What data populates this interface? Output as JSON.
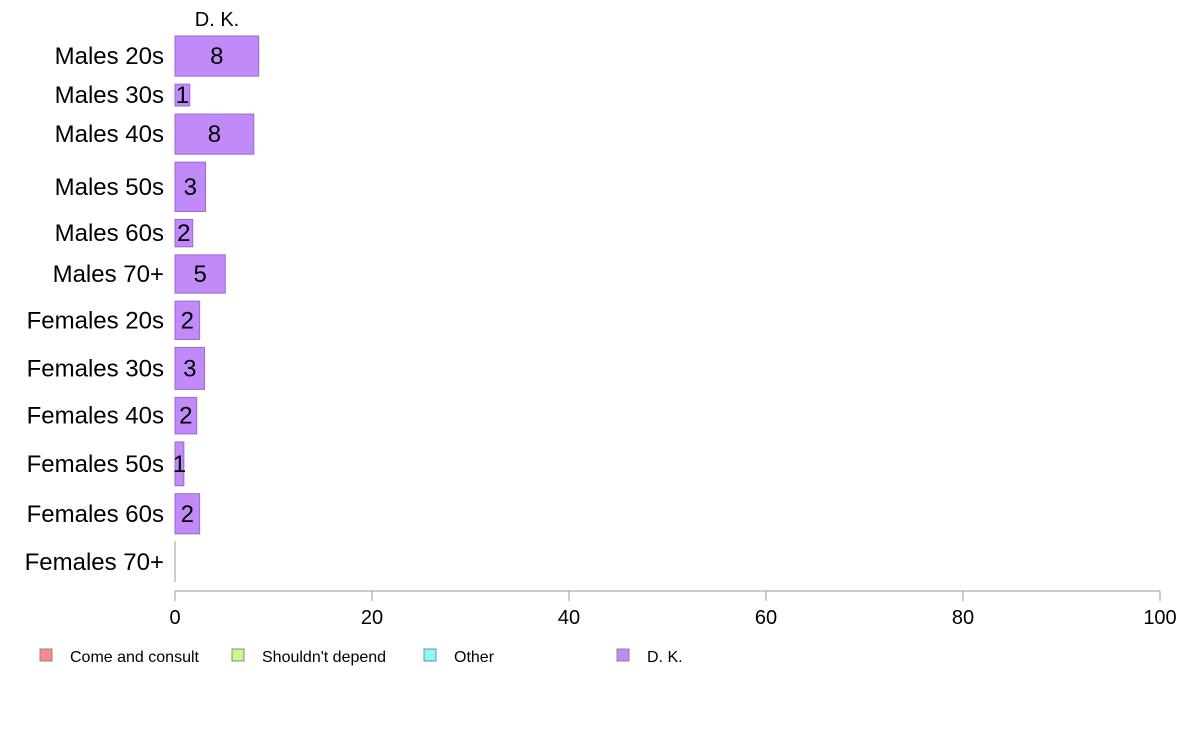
{
  "chart_data": {
    "type": "bar",
    "orientation": "horizontal",
    "stacked": true,
    "panel_title": "D. K.",
    "categories": [
      "Males 20s",
      "Males 30s",
      "Males 40s",
      "Males 50s",
      "Males 60s",
      "Males 70+",
      "Females 20s",
      "Females 30s",
      "Females 40s",
      "Females 50s",
      "Females 60s",
      "Females 70+"
    ],
    "series": [
      {
        "name": "Come and consult",
        "color": "#f98a8a",
        "values": [
          0,
          0,
          0,
          0,
          0,
          0,
          0,
          0,
          0,
          0,
          0,
          0
        ]
      },
      {
        "name": "Shouldn't depend",
        "color": "#c8f98a",
        "values": [
          0,
          0,
          0,
          0,
          0,
          0,
          0,
          0,
          0,
          0,
          0,
          0
        ]
      },
      {
        "name": "Other",
        "color": "#8af9f9",
        "values": [
          0,
          0,
          0,
          0,
          0,
          0,
          0,
          0,
          0,
          0,
          0,
          0
        ]
      },
      {
        "name": "D. K.",
        "color": "#c08af9",
        "values": [
          8.5,
          1.5,
          8,
          3.1,
          1.8,
          5.1,
          2.5,
          3,
          2.2,
          0.9,
          2.5,
          0
        ]
      }
    ],
    "data_labels": [
      "8",
      "1",
      "8",
      "3",
      "2",
      "5",
      "2",
      "3",
      "2",
      "1",
      "2",
      ""
    ],
    "bar_weights": [
      1.1,
      0.6,
      1.1,
      1.35,
      0.75,
      1.05,
      1.05,
      1.15,
      1.0,
      1.2,
      1.1,
      1.1
    ],
    "xlim": [
      0,
      100
    ],
    "xticks": [
      "0",
      "20",
      "40",
      "60",
      "80",
      "100"
    ],
    "xtick_values": [
      0,
      20,
      40,
      60,
      80,
      100
    ],
    "grid": false,
    "legend_position": "bottom-left"
  }
}
